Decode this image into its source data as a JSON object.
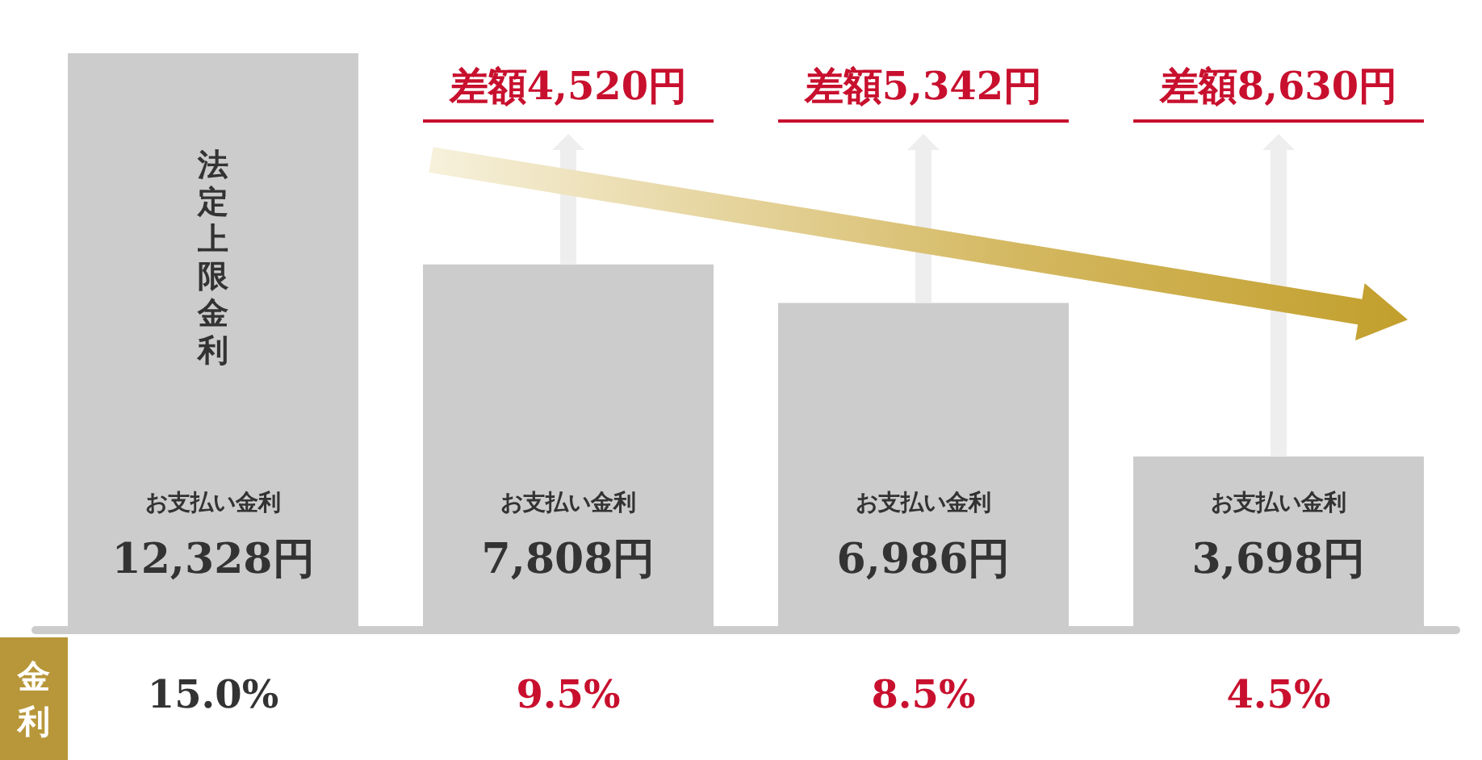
{
  "chart_data": {
    "type": "bar",
    "xlabel": "金利",
    "categories": [
      "15.0%",
      "9.5%",
      "8.5%",
      "4.5%"
    ],
    "values": [
      12328,
      7808,
      6986,
      3698
    ],
    "colors": [
      "#cccccc",
      "#cccccc",
      "#cccccc",
      "#cccccc"
    ],
    "value_labels": [
      "12,328円",
      "7,808円",
      "6,986円",
      "3,698円"
    ],
    "annotations": [
      "法定上限金利",
      "差額4,520円",
      "差額5,342円",
      "差額8,630円",
      "お支払い金利",
      "お支払い金利",
      "お支払い金利",
      "お支払い金利"
    ]
  }
}
